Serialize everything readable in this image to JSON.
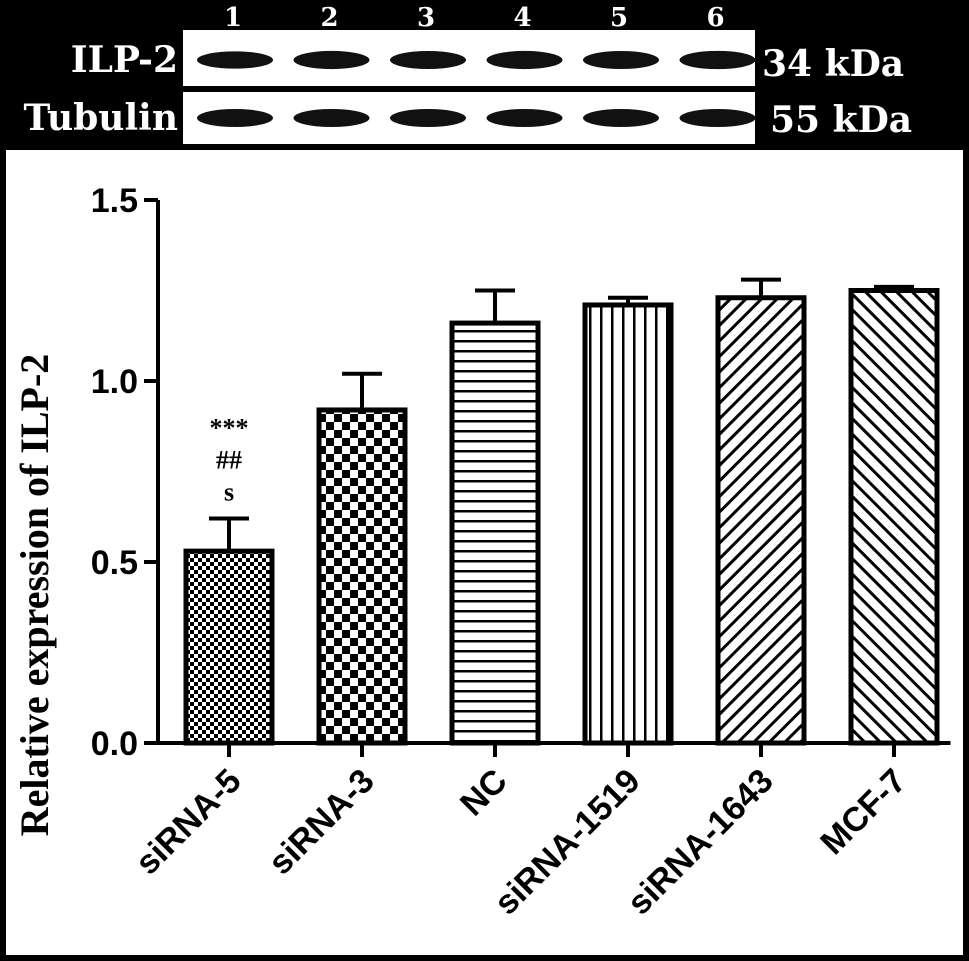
{
  "blot": {
    "lanes": [
      "1",
      "2",
      "3",
      "4",
      "5",
      "6"
    ],
    "rows": [
      {
        "label": "ILP-2",
        "size": "34 kDa"
      },
      {
        "label": "Tubulin",
        "size": "55 kDa"
      }
    ]
  },
  "chart_data": {
    "type": "bar",
    "title": "",
    "xlabel": "",
    "ylabel": "Relative expression of ILP-2",
    "categories": [
      "siRNA-5",
      "siRNA-3",
      "NC",
      "siRNA-1519",
      "siRNA-1643",
      "MCF-7"
    ],
    "values": [
      0.53,
      0.92,
      1.16,
      1.21,
      1.23,
      1.25
    ],
    "errors": [
      0.09,
      0.1,
      0.09,
      0.02,
      0.05,
      0.01
    ],
    "patterns": [
      "fine-checker",
      "checker",
      "horizontal-lines",
      "vertical-lines",
      "diagonal-forward",
      "diagonal-backward"
    ],
    "ylim": [
      0,
      1.5
    ],
    "yticks": [
      "0.0",
      "0.5",
      "1.0",
      "1.5"
    ],
    "annotations": [
      {
        "category": "siRNA-5",
        "lines": [
          "***",
          "##",
          "s"
        ]
      }
    ],
    "grid": false,
    "legend": "none"
  }
}
